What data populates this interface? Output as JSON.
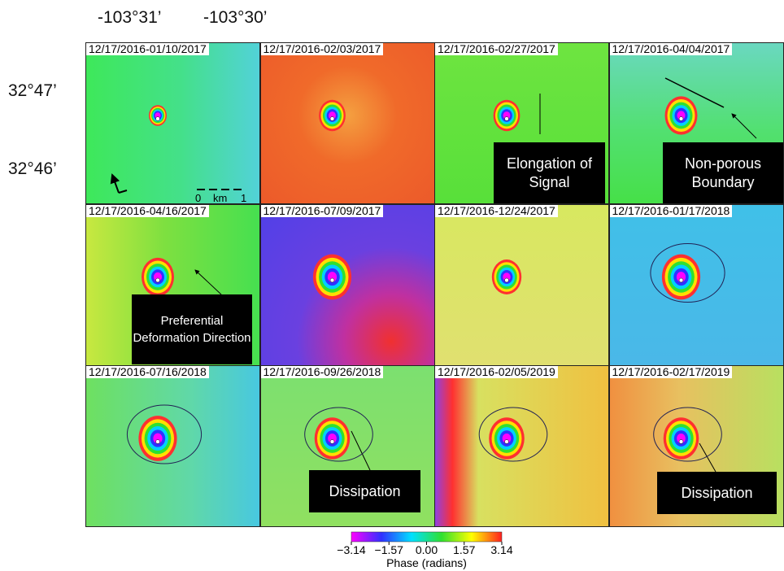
{
  "axes": {
    "lon_labels": [
      "-103°31’",
      "-103°30’"
    ],
    "lat_labels": [
      "32°47’",
      "32°46’"
    ]
  },
  "panels": [
    {
      "title": "12/17/2016-01/10/2017"
    },
    {
      "title": "12/17/2016-02/03/2017"
    },
    {
      "title": "12/17/2016-02/27/2017"
    },
    {
      "title": "12/17/2016-04/04/2017"
    },
    {
      "title": "12/17/2016-04/16/2017"
    },
    {
      "title": "12/17/2016-07/09/2017"
    },
    {
      "title": "12/17/2016-12/24/2017"
    },
    {
      "title": "12/17/2016-01/17/2018"
    },
    {
      "title": "12/17/2016-07/16/2018"
    },
    {
      "title": "12/17/2016-09/26/2018"
    },
    {
      "title": "12/17/2016-02/05/2019"
    },
    {
      "title": "12/17/2016-02/17/2019"
    }
  ],
  "annotations": [
    {
      "text": "Elongation of Signal"
    },
    {
      "text": "Non-porous Boundary"
    },
    {
      "text": "Preferential Deformation Direction"
    },
    {
      "text": "Dissipation"
    },
    {
      "text": "Dissipation"
    }
  ],
  "scale_bar": {
    "start": "0",
    "unit": "km",
    "end": "1"
  },
  "colorbar": {
    "label": "Phase (radians)",
    "lim": [
      -3.14,
      3.14
    ],
    "ticks": [
      {
        "value": -3.14,
        "label": "−3.14"
      },
      {
        "value": -1.57,
        "label": "−1.57"
      },
      {
        "value": 0,
        "label": "0.00"
      },
      1.57,
      3.14
    ]
  }
}
